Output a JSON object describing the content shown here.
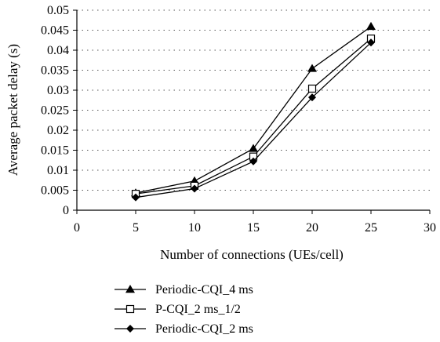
{
  "chart_data": {
    "type": "line",
    "title": "",
    "xlabel": "Number of connections (UEs/cell)",
    "ylabel": "Average packet delay (s)",
    "xlim": [
      0,
      30
    ],
    "ylim": [
      0,
      0.05
    ],
    "x_ticks": [
      0,
      5,
      10,
      15,
      20,
      25,
      30
    ],
    "y_ticks": [
      0,
      0.005,
      0.01,
      0.015,
      0.02,
      0.025,
      0.03,
      0.035,
      0.04,
      0.045,
      0.05
    ],
    "x_tick_labels": [
      "0",
      "5",
      "10",
      "15",
      "20",
      "25",
      "30"
    ],
    "y_tick_labels": [
      "0",
      "0.005",
      "0.01",
      "0.015",
      "0.02",
      "0.025",
      "0.03",
      "0.035",
      "0.04",
      "0.045",
      "0.05"
    ],
    "grid": "horizontal dotted",
    "legend_position": "bottom-left",
    "x": [
      5,
      10,
      15,
      20,
      25
    ],
    "series": [
      {
        "name": "Periodic-CQI_4 ms",
        "marker": "triangle",
        "values": [
          0.0043,
          0.0073,
          0.0154,
          0.0354,
          0.0459
        ]
      },
      {
        "name": "P-CQI_2 ms_1/2",
        "marker": "square-open",
        "values": [
          0.0041,
          0.0061,
          0.0134,
          0.0304,
          0.0429
        ]
      },
      {
        "name": "Periodic-CQI_2 ms",
        "marker": "diamond",
        "values": [
          0.0032,
          0.0054,
          0.0122,
          0.0282,
          0.0419
        ]
      }
    ],
    "colors": {
      "line": "#000000",
      "grid": "#555555",
      "background": "#ffffff"
    }
  }
}
